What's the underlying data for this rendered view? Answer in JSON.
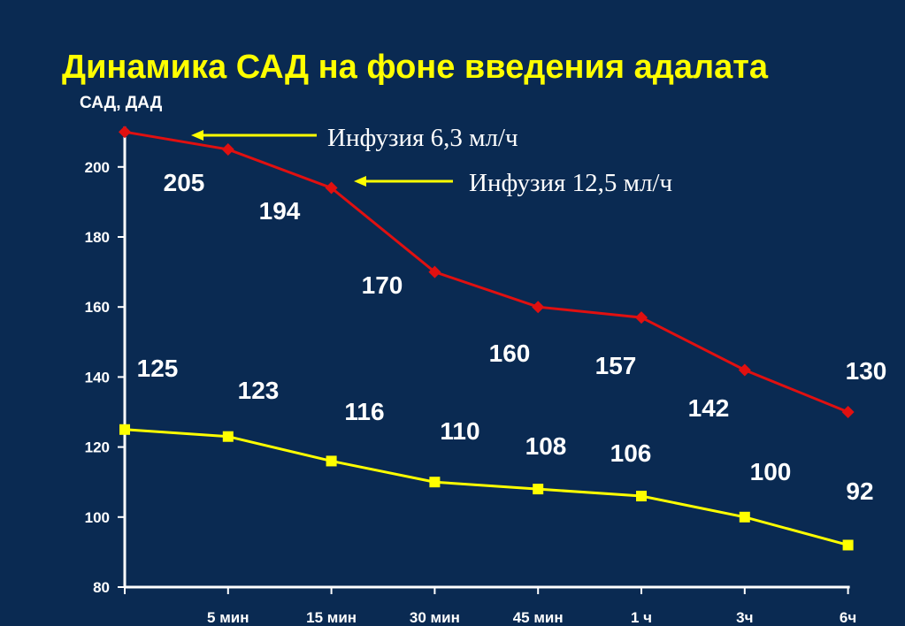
{
  "chart_data": {
    "type": "line",
    "title": "Динамика САД на фоне введения адалата",
    "ylabel": "САД, ДАД",
    "xlabel": "",
    "categories": [
      "",
      "5 мин",
      "15 мин",
      "30 мин",
      "45 мин",
      "1 ч",
      "3ч",
      "6ч"
    ],
    "ylim": [
      80,
      210
    ],
    "yticks": [
      80,
      100,
      120,
      140,
      160,
      180,
      200
    ],
    "grid": false,
    "series": [
      {
        "color": "#e01010",
        "marker": "diamond",
        "values": [
          210,
          205,
          194,
          170,
          160,
          157,
          142,
          130
        ],
        "data_labels": [
          "",
          "205",
          "194",
          "170",
          "160",
          "157",
          "142",
          "130"
        ]
      },
      {
        "color": "#ffff00",
        "marker": "square",
        "values": [
          125,
          123,
          116,
          110,
          108,
          106,
          100,
          92
        ],
        "data_labels": [
          "125",
          "123",
          "116",
          "110",
          "108",
          "106",
          "100",
          "92"
        ]
      }
    ],
    "annotations": [
      {
        "text": "Инфузия 6,3 мл/ч",
        "target_index": 0,
        "arrow_color": "#ffff00"
      },
      {
        "text": "Инфузия 12,5 мл/ч",
        "target_index": 2,
        "arrow_color": "#ffff00"
      }
    ]
  }
}
